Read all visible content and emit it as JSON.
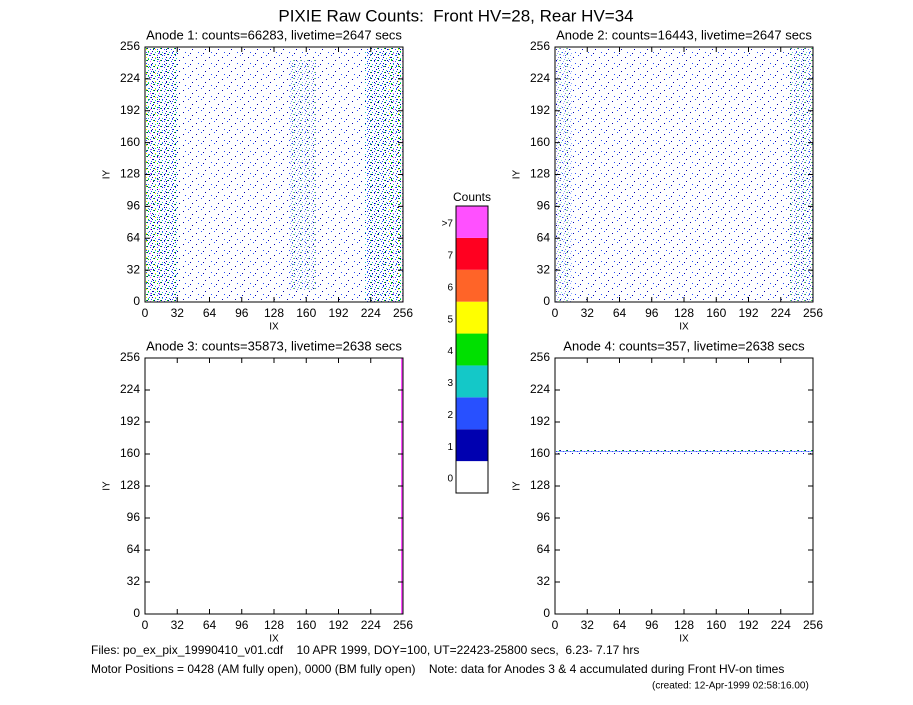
{
  "title": "PIXIE Raw Counts:  Front HV=28, Rear HV=34",
  "chart_data": [
    {
      "type": "heatmap",
      "title": "Anode 1: counts=66283, livetime=2647 secs",
      "x_label": "IX",
      "y_label": "IY",
      "xlim": [
        0,
        256
      ],
      "ylim": [
        0,
        256
      ],
      "xticks": [
        0,
        32,
        64,
        96,
        128,
        160,
        192,
        224,
        256
      ],
      "yticks": [
        0,
        32,
        64,
        96,
        128,
        160,
        192,
        224,
        256
      ]
    },
    {
      "type": "heatmap",
      "title": "Anode 2: counts=16443, livetime=2647 secs",
      "x_label": "IX",
      "y_label": "IY",
      "xlim": [
        0,
        256
      ],
      "ylim": [
        0,
        256
      ],
      "xticks": [
        0,
        32,
        64,
        96,
        128,
        160,
        192,
        224,
        256
      ],
      "yticks": [
        0,
        32,
        64,
        96,
        128,
        160,
        192,
        224,
        256
      ]
    },
    {
      "type": "heatmap",
      "title": "Anode 3: counts=35873, livetime=2638 secs",
      "x_label": "IX",
      "y_label": "IY",
      "xlim": [
        0,
        256
      ],
      "ylim": [
        0,
        256
      ],
      "xticks": [
        0,
        32,
        64,
        96,
        128,
        160,
        192,
        224,
        256
      ],
      "yticks": [
        0,
        32,
        64,
        96,
        128,
        160,
        192,
        224,
        256
      ]
    },
    {
      "type": "heatmap",
      "title": "Anode 4: counts=357, livetime=2638 secs",
      "x_label": "IX",
      "y_label": "IY",
      "xlim": [
        0,
        256
      ],
      "ylim": [
        0,
        256
      ],
      "xticks": [
        0,
        32,
        64,
        96,
        128,
        160,
        192,
        224,
        256
      ],
      "yticks": [
        0,
        32,
        64,
        96,
        128,
        160,
        192,
        224,
        256
      ]
    }
  ],
  "colorbar": {
    "title": "Counts",
    "levels": [
      {
        "label": "0",
        "color": "#ffffff"
      },
      {
        "label": "1",
        "color": "#0000b0"
      },
      {
        "label": "2",
        "color": "#2850ff"
      },
      {
        "label": "3",
        "color": "#14c8c8"
      },
      {
        "label": "4",
        "color": "#00e000"
      },
      {
        "label": "5",
        "color": "#ffff00"
      },
      {
        "label": "6",
        "color": "#ff6428"
      },
      {
        "label": "7",
        "color": "#ff0020"
      },
      {
        "label": ">7",
        "color": "#ff50ff"
      }
    ]
  },
  "footer": {
    "files": "Files: po_ex_pix_19990410_v01.cdf    10 APR 1999, DOY=100, UT=22423-25800 secs,  6.23- 7.17 hrs",
    "motor": "Motor Positions = 0428 (AM fully open), 0000 (BM fully open)    Note: data for Anodes 3 & 4 accumulated during Front HV-on times",
    "created": "(created: 12-Apr-1999 02:58:16.00)"
  }
}
